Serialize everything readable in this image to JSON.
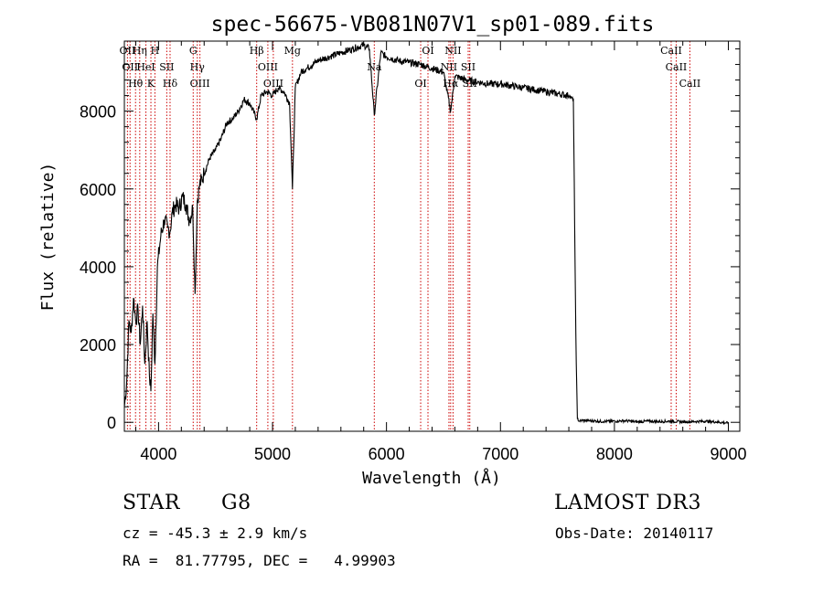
{
  "chart_data": {
    "type": "line",
    "title": "spec-56675-VB081N07V1_sp01-089.fits",
    "xlabel": "Wavelength (Å)",
    "ylabel": "Flux (relative)",
    "xlim": [
      3700,
      9100
    ],
    "ylim": [
      -230,
      9800
    ],
    "xticks": [
      4000,
      5000,
      6000,
      7000,
      8000,
      9000
    ],
    "yticks": [
      0,
      2000,
      4000,
      6000,
      8000
    ],
    "series": [
      {
        "name": "flux",
        "x": [
          3700,
          3720,
          3740,
          3760,
          3780,
          3800,
          3820,
          3840,
          3860,
          3880,
          3900,
          3920,
          3933,
          3950,
          3968,
          3990,
          4020,
          4050,
          4080,
          4101,
          4120,
          4150,
          4180,
          4210,
          4240,
          4270,
          4300,
          4320,
          4340,
          4360,
          4400,
          4450,
          4500,
          4550,
          4600,
          4650,
          4700,
          4750,
          4800,
          4861,
          4900,
          4950,
          5000,
          5050,
          5100,
          5150,
          5175,
          5200,
          5250,
          5300,
          5400,
          5500,
          5600,
          5700,
          5800,
          5850,
          5893,
          5950,
          6000,
          6100,
          6200,
          6300,
          6400,
          6500,
          6563,
          6600,
          6700,
          6800,
          6900,
          7000,
          7100,
          7200,
          7300,
          7400,
          7500,
          7600,
          7640,
          7655,
          7665,
          7675,
          7690,
          7720,
          7800,
          7900,
          8000,
          8100,
          8200,
          8300,
          8400,
          8500,
          8600,
          8700,
          8800,
          8900,
          9000
        ],
        "values": [
          400,
          1000,
          2600,
          2300,
          3200,
          2600,
          2900,
          2000,
          3000,
          1500,
          2600,
          1200,
          800,
          2800,
          1500,
          4000,
          4800,
          5200,
          5000,
          4900,
          5400,
          5600,
          5500,
          5800,
          5600,
          5200,
          5500,
          3300,
          5700,
          6100,
          6400,
          6800,
          7000,
          7300,
          7700,
          7800,
          8000,
          8300,
          8200,
          7800,
          8400,
          8500,
          8400,
          8600,
          8500,
          8200,
          6000,
          8600,
          9000,
          9100,
          9300,
          9400,
          9500,
          9600,
          9700,
          9600,
          7900,
          9500,
          9400,
          9300,
          9250,
          9200,
          9100,
          9000,
          8000,
          8900,
          8800,
          8750,
          8700,
          8700,
          8650,
          8600,
          8550,
          8500,
          8450,
          8400,
          8300,
          4000,
          1500,
          100,
          30,
          50,
          40,
          20,
          30,
          40,
          10,
          30,
          20,
          30,
          10,
          20,
          30,
          10,
          -20
        ]
      }
    ],
    "lines": [
      {
        "wl": 3727,
        "label": "OII"
      },
      {
        "wl": 3750,
        "label": "OII"
      },
      {
        "wl": 3798,
        "label": "Hθ"
      },
      {
        "wl": 3835,
        "label": "Hη"
      },
      {
        "wl": 3889,
        "label": "HeI"
      },
      {
        "wl": 3933,
        "label": "K"
      },
      {
        "wl": 3968,
        "label": "H"
      },
      {
        "wl": 4072,
        "label": "SII"
      },
      {
        "wl": 4101,
        "label": "Hδ"
      },
      {
        "wl": 4304,
        "label": "G"
      },
      {
        "wl": 4340,
        "label": "Hγ"
      },
      {
        "wl": 4363,
        "label": "OIII"
      },
      {
        "wl": 4861,
        "label": "Hβ"
      },
      {
        "wl": 4959,
        "label": "OIII"
      },
      {
        "wl": 5007,
        "label": "OIII"
      },
      {
        "wl": 5175,
        "label": "Mg"
      },
      {
        "wl": 5893,
        "label": "Na"
      },
      {
        "wl": 6300,
        "label": "OI"
      },
      {
        "wl": 6364,
        "label": "OI"
      },
      {
        "wl": 6548,
        "label": "NII"
      },
      {
        "wl": 6563,
        "label": "Hα"
      },
      {
        "wl": 6584,
        "label": "NII"
      },
      {
        "wl": 6717,
        "label": "SII"
      },
      {
        "wl": 6731,
        "label": "SII"
      },
      {
        "wl": 8498,
        "label": "CaII"
      },
      {
        "wl": 8542,
        "label": "CaII"
      },
      {
        "wl": 8662,
        "label": "CaII"
      }
    ]
  },
  "info": {
    "classification": "STAR",
    "subclass": "G8",
    "survey": "LAMOST DR3",
    "redshift": "cz = -45.3 ± 2.9 km/s",
    "obs_date": "Obs-Date: 20140117",
    "coords": "RA =  81.77795, DEC =   4.99903"
  },
  "colors": {
    "ink": "#000000",
    "line_marker": "#cc0000",
    "background": "#ffffff"
  }
}
